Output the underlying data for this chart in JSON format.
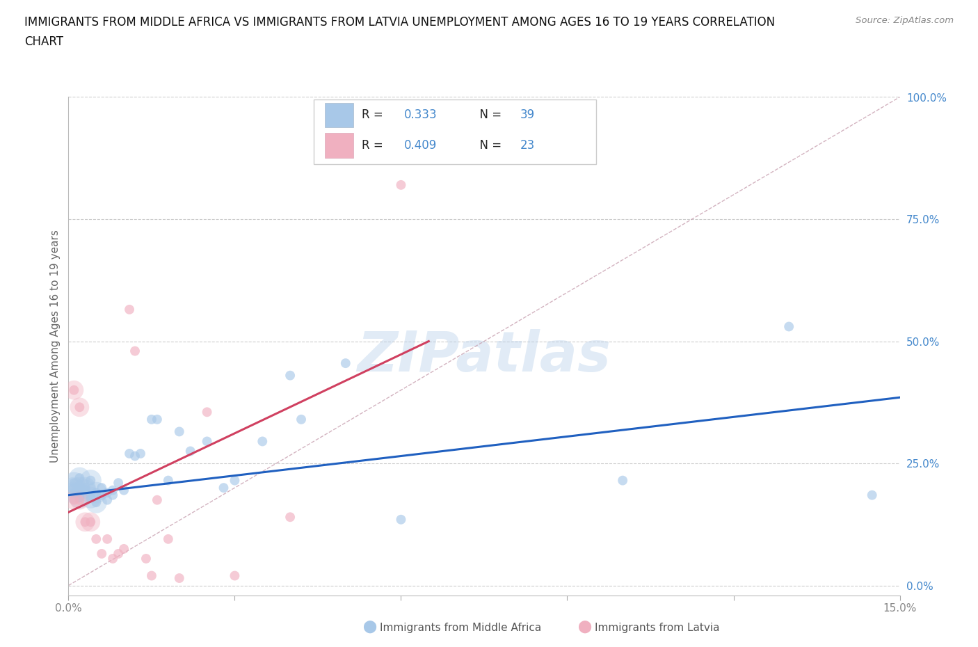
{
  "title_line1": "IMMIGRANTS FROM MIDDLE AFRICA VS IMMIGRANTS FROM LATVIA UNEMPLOYMENT AMONG AGES 16 TO 19 YEARS CORRELATION",
  "title_line2": "CHART",
  "source": "Source: ZipAtlas.com",
  "ylabel": "Unemployment Among Ages 16 to 19 years",
  "watermark": "ZIPatlas",
  "xlim": [
    0.0,
    0.15
  ],
  "ylim": [
    -0.02,
    1.0
  ],
  "ytick_labels_right": [
    "0.0%",
    "25.0%",
    "50.0%",
    "75.0%",
    "100.0%"
  ],
  "ytick_positions_right": [
    0.0,
    0.25,
    0.5,
    0.75,
    1.0
  ],
  "R_blue": 0.333,
  "N_blue": 39,
  "R_pink": 0.409,
  "N_pink": 23,
  "blue_color": "#a8c8e8",
  "pink_color": "#f0b0c0",
  "blue_line_color": "#2060c0",
  "pink_line_color": "#d04060",
  "pink_dash_color": "#c8a0b0",
  "grid_color": "#cccccc",
  "title_color": "#111111",
  "right_tick_color": "#4488cc",
  "blue_scatter_x": [
    0.001,
    0.001,
    0.001,
    0.002,
    0.002,
    0.002,
    0.003,
    0.003,
    0.004,
    0.004,
    0.005,
    0.005,
    0.006,
    0.006,
    0.007,
    0.007,
    0.008,
    0.008,
    0.009,
    0.01,
    0.011,
    0.012,
    0.013,
    0.015,
    0.016,
    0.018,
    0.02,
    0.022,
    0.025,
    0.028,
    0.03,
    0.035,
    0.04,
    0.042,
    0.05,
    0.06,
    0.1,
    0.13,
    0.145
  ],
  "blue_scatter_y": [
    0.19,
    0.21,
    0.2,
    0.18,
    0.2,
    0.22,
    0.195,
    0.2,
    0.18,
    0.215,
    0.19,
    0.17,
    0.2,
    0.185,
    0.175,
    0.19,
    0.185,
    0.195,
    0.21,
    0.195,
    0.27,
    0.265,
    0.27,
    0.34,
    0.34,
    0.215,
    0.315,
    0.275,
    0.295,
    0.2,
    0.215,
    0.295,
    0.43,
    0.34,
    0.455,
    0.135,
    0.215,
    0.53,
    0.185
  ],
  "pink_scatter_x": [
    0.001,
    0.001,
    0.002,
    0.002,
    0.003,
    0.004,
    0.005,
    0.006,
    0.007,
    0.008,
    0.009,
    0.01,
    0.011,
    0.012,
    0.014,
    0.015,
    0.016,
    0.018,
    0.02,
    0.025,
    0.03,
    0.04,
    0.06
  ],
  "pink_scatter_y": [
    0.4,
    0.175,
    0.365,
    0.175,
    0.13,
    0.13,
    0.095,
    0.065,
    0.095,
    0.055,
    0.065,
    0.075,
    0.565,
    0.48,
    0.055,
    0.02,
    0.175,
    0.095,
    0.015,
    0.355,
    0.02,
    0.14,
    0.82
  ]
}
